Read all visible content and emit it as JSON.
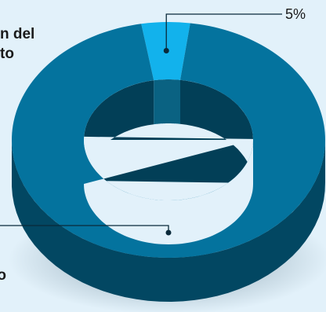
{
  "title": {
    "line1": "n del",
    "line2": "to",
    "fragment": "o"
  },
  "chart_data": {
    "type": "pie",
    "style": "3d-donut",
    "slices": [
      {
        "label": "5%",
        "value": 5,
        "color": "#12b2ec"
      },
      {
        "label": "",
        "value": 95,
        "color": "#04739e"
      }
    ]
  }
}
